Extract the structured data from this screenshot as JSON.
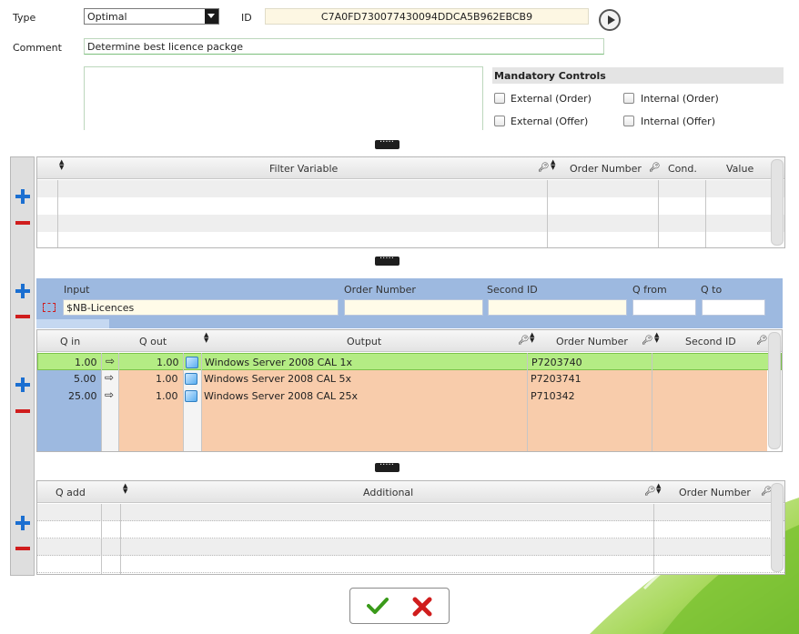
{
  "header": {
    "type_label": "Type",
    "type_value": "Optimal",
    "id_label": "ID",
    "id_value": "C7A0FD730077430094DDCA5B962EBCB9",
    "comment_label": "Comment",
    "comment_value": "Determine best licence packge"
  },
  "mandatory": {
    "title": "Mandatory Controls",
    "external_order": "External (Order)",
    "internal_order": "Internal (Order)",
    "external_offer": "External (Offer)",
    "internal_offer": "Internal (Offer)"
  },
  "filter_grid": {
    "headers": [
      "Filter Variable",
      "Order Number",
      "Cond.",
      "Value"
    ]
  },
  "input_panel": {
    "labels": [
      "Input",
      "Order Number",
      "Second ID",
      "Q from",
      "Q to"
    ],
    "input_value": "$NB-Licences"
  },
  "output_grid": {
    "headers": [
      "Q in",
      "Q out",
      "Output",
      "Order Number",
      "Second ID"
    ],
    "rows": [
      {
        "q_in": "1.00",
        "q_out": "1.00",
        "output": "Windows Server 2008 CAL 1x",
        "order": "P7203740",
        "second": ""
      },
      {
        "q_in": "5.00",
        "q_out": "1.00",
        "output": "Windows Server 2008 CAL 5x",
        "order": "P7203741",
        "second": ""
      },
      {
        "q_in": "25.00",
        "q_out": "1.00",
        "output": "Windows Server 2008 CAL 25x",
        "order": "P710342",
        "second": ""
      }
    ]
  },
  "additional_grid": {
    "headers": [
      "Q add",
      "Additional",
      "Order Number"
    ]
  },
  "colors": {
    "selected_row": "#b4ec84",
    "orange_row": "#f8ccab",
    "blue_panel": "#9db9e0"
  }
}
